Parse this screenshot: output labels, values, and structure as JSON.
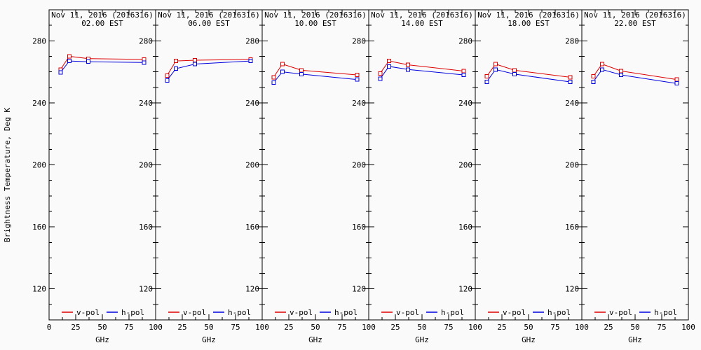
{
  "figure": {
    "ylabel": "Brightness Temperature, Deg K",
    "xlabel": "GHz",
    "background": "#fafafa",
    "axis_color": "#000000",
    "vpol_color": "#dd0000",
    "hpol_color": "#0000dd",
    "legend": [
      "v-pol",
      "h-pol"
    ]
  },
  "chart_data": [
    {
      "type": "line",
      "title": "Nov 11, 2016 (2016316)",
      "subtitle": "02.00 EST",
      "xlabel": "GHz",
      "x": [
        10.7,
        19,
        37,
        89
      ],
      "series": [
        {
          "name": "v-pol",
          "color": "#dd0000",
          "values": [
            261.5,
            270,
            268.5,
            268
          ]
        },
        {
          "name": "h-pol",
          "color": "#0000dd",
          "values": [
            259.5,
            267,
            266.5,
            266
          ]
        }
      ],
      "xlim": [
        0,
        100
      ],
      "ylim": [
        100,
        300
      ],
      "xticks": [
        0,
        25,
        50,
        75,
        100
      ],
      "yticks": [
        120,
        160,
        200,
        240,
        280
      ],
      "legend_position": "bottom-inside",
      "grid": false
    },
    {
      "type": "line",
      "title": "Nov 11, 2016 (2016316)",
      "subtitle": "06.00 EST",
      "xlabel": "GHz",
      "x": [
        10.7,
        19,
        37,
        89
      ],
      "series": [
        {
          "name": "v-pol",
          "color": "#dd0000",
          "values": [
            257.5,
            267,
            267.5,
            268
          ]
        },
        {
          "name": "h-pol",
          "color": "#0000dd",
          "values": [
            254.5,
            262,
            265,
            267
          ]
        }
      ],
      "xlim": [
        0,
        100
      ],
      "ylim": [
        100,
        300
      ],
      "xticks": [
        0,
        25,
        50,
        75,
        100
      ],
      "yticks": [
        120,
        160,
        200,
        240,
        280
      ],
      "legend_position": "bottom-inside",
      "grid": false
    },
    {
      "type": "line",
      "title": "Nov 11, 2016 (2016316)",
      "subtitle": "10.00 EST",
      "xlabel": "GHz",
      "x": [
        10.7,
        19,
        37,
        89
      ],
      "series": [
        {
          "name": "v-pol",
          "color": "#dd0000",
          "values": [
            256.5,
            265,
            261,
            258
          ]
        },
        {
          "name": "h-pol",
          "color": "#0000dd",
          "values": [
            253,
            260,
            258.5,
            255
          ]
        }
      ],
      "xlim": [
        0,
        100
      ],
      "ylim": [
        100,
        300
      ],
      "xticks": [
        0,
        25,
        50,
        75,
        100
      ],
      "yticks": [
        120,
        160,
        200,
        240,
        280
      ],
      "legend_position": "bottom-inside",
      "grid": false
    },
    {
      "type": "line",
      "title": "Nov 11, 2016 (2016316)",
      "subtitle": "14.00 EST",
      "xlabel": "GHz",
      "x": [
        10.7,
        19,
        37,
        89
      ],
      "series": [
        {
          "name": "v-pol",
          "color": "#dd0000",
          "values": [
            259,
            267,
            264.5,
            260.5
          ]
        },
        {
          "name": "h-pol",
          "color": "#0000dd",
          "values": [
            255.5,
            263.5,
            261.5,
            258
          ]
        }
      ],
      "xlim": [
        0,
        100
      ],
      "ylim": [
        100,
        300
      ],
      "xticks": [
        0,
        25,
        50,
        75,
        100
      ],
      "yticks": [
        120,
        160,
        200,
        240,
        280
      ],
      "legend_position": "bottom-inside",
      "grid": false
    },
    {
      "type": "line",
      "title": "Nov 11, 2016 (2016316)",
      "subtitle": "18.00 EST",
      "xlabel": "GHz",
      "x": [
        10.7,
        19,
        37,
        89
      ],
      "series": [
        {
          "name": "v-pol",
          "color": "#dd0000",
          "values": [
            257,
            265,
            261,
            256.5
          ]
        },
        {
          "name": "h-pol",
          "color": "#0000dd",
          "values": [
            253.5,
            261.5,
            258.5,
            253.5
          ]
        }
      ],
      "xlim": [
        0,
        100
      ],
      "ylim": [
        100,
        300
      ],
      "xticks": [
        0,
        25,
        50,
        75,
        100
      ],
      "yticks": [
        120,
        160,
        200,
        240,
        280
      ],
      "legend_position": "bottom-inside",
      "grid": false
    },
    {
      "type": "line",
      "title": "Nov 11, 2016 (2016316)",
      "subtitle": "22.00 EST",
      "xlabel": "GHz",
      "x": [
        10.7,
        19,
        37,
        89
      ],
      "series": [
        {
          "name": "v-pol",
          "color": "#dd0000",
          "values": [
            257,
            265,
            260.5,
            255
          ]
        },
        {
          "name": "h-pol",
          "color": "#0000dd",
          "values": [
            253.5,
            261.5,
            258,
            252.5
          ]
        }
      ],
      "xlim": [
        0,
        100
      ],
      "ylim": [
        100,
        300
      ],
      "xticks": [
        0,
        25,
        50,
        75,
        100
      ],
      "yticks": [
        120,
        160,
        200,
        240,
        280
      ],
      "legend_position": "bottom-inside",
      "grid": false
    }
  ]
}
